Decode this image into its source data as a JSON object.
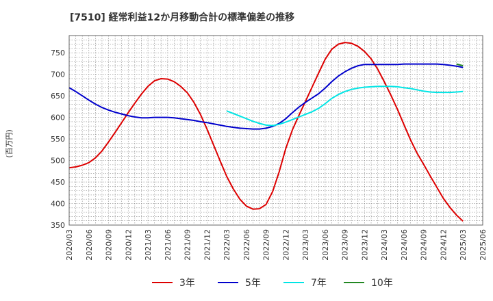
{
  "chart_data": {
    "type": "line",
    "title": "[7510]  経常利益12か月移動合計の標準偏差の推移",
    "ylabel": "(百万円)",
    "xlabel": "",
    "ylim": [
      350,
      790
    ],
    "yticks": [
      350,
      400,
      450,
      500,
      550,
      600,
      650,
      700,
      750
    ],
    "xtick_labels": [
      "2020/03",
      "2020/06",
      "2020/09",
      "2020/12",
      "2021/03",
      "2021/06",
      "2021/09",
      "2021/12",
      "2022/03",
      "2022/06",
      "2022/09",
      "2022/12",
      "2023/03",
      "2023/06",
      "2023/09",
      "2023/12",
      "2024/03",
      "2024/06",
      "2024/09",
      "2024/12",
      "2025/03",
      "2025/06"
    ],
    "grid": true,
    "legend_position": "bottom",
    "series": [
      {
        "name": "3年",
        "color": "#dd0000",
        "x": [
          "2020/03",
          "2020/04",
          "2020/05",
          "2020/06",
          "2020/07",
          "2020/08",
          "2020/09",
          "2020/10",
          "2020/11",
          "2020/12",
          "2021/01",
          "2021/02",
          "2021/03",
          "2021/04",
          "2021/05",
          "2021/06",
          "2021/07",
          "2021/08",
          "2021/09",
          "2021/10",
          "2021/11",
          "2021/12",
          "2022/01",
          "2022/02",
          "2022/03",
          "2022/04",
          "2022/05",
          "2022/06",
          "2022/07",
          "2022/08",
          "2022/09",
          "2022/10",
          "2022/11",
          "2022/12",
          "2023/01",
          "2023/02",
          "2023/03",
          "2023/04",
          "2023/05",
          "2023/06",
          "2023/07",
          "2023/08",
          "2023/09",
          "2023/10",
          "2023/11",
          "2023/12",
          "2024/01",
          "2024/02",
          "2024/03",
          "2024/04",
          "2024/05",
          "2024/06",
          "2024/07",
          "2024/08",
          "2024/09",
          "2024/10",
          "2024/11",
          "2024/12",
          "2025/01",
          "2025/02",
          "2025/03"
        ],
        "values": [
          483,
          485,
          489,
          495,
          506,
          522,
          543,
          565,
          588,
          611,
          633,
          654,
          672,
          685,
          690,
          689,
          683,
          672,
          657,
          635,
          607,
          573,
          536,
          499,
          463,
          434,
          410,
          394,
          387,
          388,
          398,
          428,
          474,
          528,
          571,
          605,
          637,
          670,
          703,
          735,
          758,
          770,
          774,
          772,
          765,
          753,
          736,
          712,
          683,
          652,
          619,
          583,
          548,
          517,
          491,
          464,
          438,
          412,
          391,
          373,
          359
        ]
      },
      {
        "name": "5年",
        "color": "#0000cc",
        "x": [
          "2020/03",
          "2020/04",
          "2020/05",
          "2020/06",
          "2020/07",
          "2020/08",
          "2020/09",
          "2020/10",
          "2020/11",
          "2020/12",
          "2021/01",
          "2021/02",
          "2021/03",
          "2021/04",
          "2021/05",
          "2021/06",
          "2021/07",
          "2021/08",
          "2021/09",
          "2021/10",
          "2021/11",
          "2021/12",
          "2022/01",
          "2022/02",
          "2022/03",
          "2022/04",
          "2022/05",
          "2022/06",
          "2022/07",
          "2022/08",
          "2022/09",
          "2022/10",
          "2022/11",
          "2022/12",
          "2023/01",
          "2023/02",
          "2023/03",
          "2023/04",
          "2023/05",
          "2023/06",
          "2023/07",
          "2023/08",
          "2023/09",
          "2023/10",
          "2023/11",
          "2023/12",
          "2024/01",
          "2024/02",
          "2024/03",
          "2024/04",
          "2024/05",
          "2024/06",
          "2024/07",
          "2024/08",
          "2024/09",
          "2024/10",
          "2024/11",
          "2024/12",
          "2025/01",
          "2025/02",
          "2025/03"
        ],
        "values": [
          669,
          660,
          650,
          640,
          631,
          623,
          617,
          612,
          608,
          604,
          601,
          599,
          599,
          600,
          600,
          600,
          599,
          597,
          595,
          593,
          590,
          588,
          585,
          582,
          579,
          577,
          575,
          574,
          573,
          573,
          575,
          579,
          586,
          597,
          611,
          624,
          635,
          645,
          655,
          668,
          683,
          696,
          706,
          714,
          720,
          723,
          723,
          723,
          723,
          723,
          723,
          724,
          724,
          724,
          724,
          724,
          724,
          723,
          721,
          719,
          716
        ]
      },
      {
        "name": "7年",
        "color": "#00e5e5",
        "x": [
          "2022/03",
          "2022/04",
          "2022/05",
          "2022/06",
          "2022/07",
          "2022/08",
          "2022/09",
          "2022/10",
          "2022/11",
          "2022/12",
          "2023/01",
          "2023/02",
          "2023/03",
          "2023/04",
          "2023/05",
          "2023/06",
          "2023/07",
          "2023/08",
          "2023/09",
          "2023/10",
          "2023/11",
          "2023/12",
          "2024/01",
          "2024/02",
          "2024/03",
          "2024/04",
          "2024/05",
          "2024/06",
          "2024/07",
          "2024/08",
          "2024/09",
          "2024/10",
          "2024/11",
          "2024/12",
          "2025/01",
          "2025/02",
          "2025/03"
        ],
        "values": [
          615,
          609,
          603,
          597,
          591,
          586,
          582,
          581,
          584,
          589,
          595,
          601,
          607,
          613,
          621,
          632,
          644,
          653,
          660,
          665,
          668,
          670,
          671,
          672,
          672,
          672,
          671,
          669,
          667,
          664,
          661,
          659,
          658,
          658,
          658,
          659,
          660
        ]
      },
      {
        "name": "10年",
        "color": "#228822",
        "x": [
          "2025/02",
          "2025/03"
        ],
        "values": [
          724,
          720
        ]
      }
    ]
  }
}
